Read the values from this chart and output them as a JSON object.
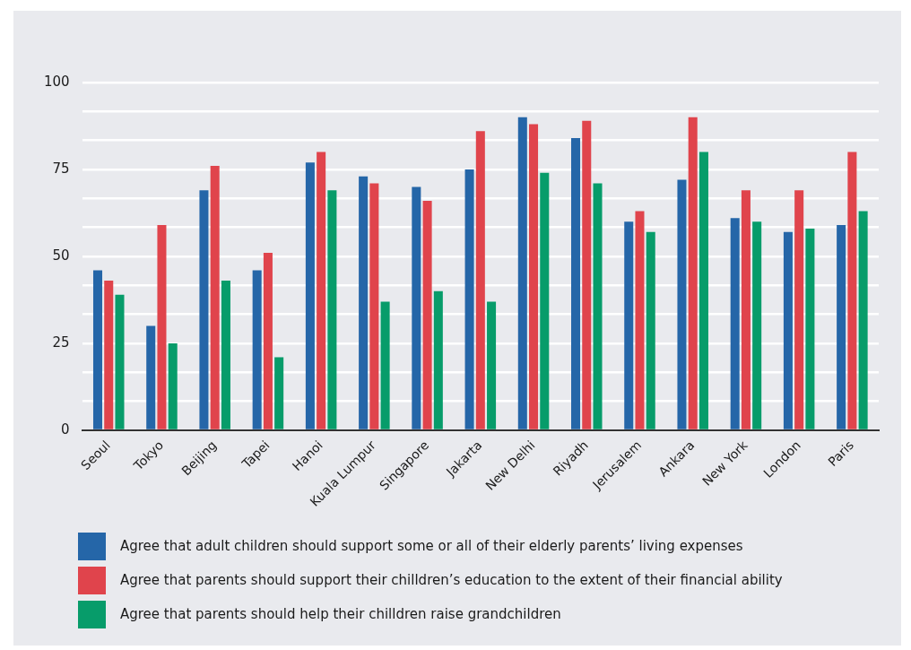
{
  "chart_data": {
    "type": "bar",
    "categories": [
      "Seoul",
      "Tokyo",
      "Beijing",
      "Tapei",
      "Hanoi",
      "Kuala Lumpur",
      "Singapore",
      "Jakarta",
      "New Delhi",
      "Riyadh",
      "Jerusalem",
      "Ankara",
      "New York",
      "London",
      "Paris"
    ],
    "series": [
      {
        "name": "Agree that adult children should support some or all of their elderly parents’ living expenses",
        "color": "#2566a8",
        "values": [
          46,
          30,
          69,
          46,
          77,
          73,
          70,
          75,
          90,
          84,
          60,
          72,
          61,
          57,
          59
        ]
      },
      {
        "name": "Agree that parents should support their chilldren’s education to the extent of their financial ability",
        "color": "#e0444c",
        "values": [
          43,
          59,
          76,
          51,
          80,
          71,
          66,
          86,
          88,
          89,
          63,
          90,
          69,
          69,
          80
        ]
      },
      {
        "name": "Agree that parents should help their chilldren raise grandchildren",
        "color": "#079c6a",
        "values": [
          39,
          25,
          43,
          21,
          69,
          37,
          40,
          37,
          74,
          71,
          57,
          80,
          60,
          58,
          63
        ]
      }
    ],
    "ylim": [
      0,
      100
    ],
    "yticks": [
      0,
      {
        "value": 8.33,
        "label": null
      },
      {
        "value": 16.67,
        "label": null
      },
      25,
      {
        "value": 33.33,
        "label": null
      },
      {
        "value": 41.67,
        "label": null
      },
      50,
      {
        "value": 58.33,
        "label": null
      },
      {
        "value": 66.67,
        "label": null
      },
      75,
      {
        "value": 83.33,
        "label": null
      },
      {
        "value": 91.67,
        "label": null
      },
      100
    ],
    "grid": "y",
    "legend": "bottom"
  }
}
